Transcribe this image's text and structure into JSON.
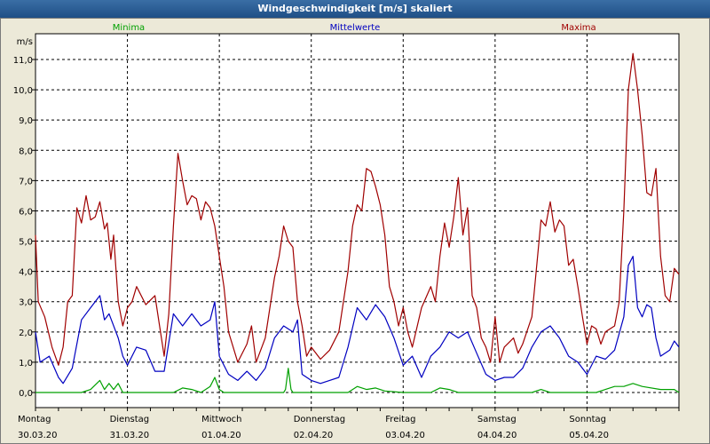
{
  "window": {
    "title": "Windgeschwindigkeit [m/s] skaliert"
  },
  "chart_data": {
    "type": "line",
    "title": "Windgeschwindigkeit [m/s] skaliert",
    "ylabel": "m/s",
    "ylim": [
      0,
      12
    ],
    "yticks": [
      0,
      1,
      2,
      3,
      4,
      5,
      6,
      7,
      8,
      9,
      10,
      11
    ],
    "ytick_labels": [
      "0,0",
      "1,0",
      "2,0",
      "3,0",
      "4,0",
      "5,0",
      "6,0",
      "7,0",
      "8,0",
      "9,0",
      "10,0",
      "11,0"
    ],
    "xlim": [
      0,
      7
    ],
    "days": [
      {
        "name": "Montag",
        "date": "30.03.20"
      },
      {
        "name": "Dienstag",
        "date": "31.03.20"
      },
      {
        "name": "Mittwoch",
        "date": "01.04.20"
      },
      {
        "name": "Donnerstag",
        "date": "02.04.20"
      },
      {
        "name": "Freitag",
        "date": "03.04.20"
      },
      {
        "name": "Samstag",
        "date": "04.04.20"
      },
      {
        "name": "Sonntag",
        "date": "05.04.20"
      }
    ],
    "series": [
      {
        "name": "Minima",
        "color": "#00a000",
        "points": [
          [
            0,
            0
          ],
          [
            0.5,
            0
          ],
          [
            0.6,
            0.1
          ],
          [
            0.7,
            0.4
          ],
          [
            0.75,
            0.1
          ],
          [
            0.8,
            0.3
          ],
          [
            0.85,
            0.1
          ],
          [
            0.9,
            0.3
          ],
          [
            0.95,
            0
          ],
          [
            1.5,
            0
          ],
          [
            1.6,
            0.15
          ],
          [
            1.7,
            0.1
          ],
          [
            1.8,
            0
          ],
          [
            1.9,
            0.2
          ],
          [
            1.95,
            0.5
          ],
          [
            2.0,
            0.1
          ],
          [
            2.05,
            0
          ],
          [
            2.7,
            0
          ],
          [
            2.72,
            0.1
          ],
          [
            2.75,
            0.8
          ],
          [
            2.78,
            0.1
          ],
          [
            2.8,
            0
          ],
          [
            3.4,
            0
          ],
          [
            3.5,
            0.2
          ],
          [
            3.6,
            0.1
          ],
          [
            3.7,
            0.15
          ],
          [
            3.8,
            0.05
          ],
          [
            4.0,
            0
          ],
          [
            4.3,
            0
          ],
          [
            4.4,
            0.15
          ],
          [
            4.5,
            0.1
          ],
          [
            4.6,
            0
          ],
          [
            5.4,
            0
          ],
          [
            5.5,
            0.1
          ],
          [
            5.6,
            0
          ],
          [
            6.1,
            0
          ],
          [
            6.2,
            0.1
          ],
          [
            6.3,
            0.2
          ],
          [
            6.4,
            0.2
          ],
          [
            6.5,
            0.3
          ],
          [
            6.6,
            0.2
          ],
          [
            6.8,
            0.1
          ],
          [
            6.95,
            0.1
          ],
          [
            7.0,
            0
          ]
        ]
      },
      {
        "name": "Mittelwerte",
        "color": "#0000c0",
        "points": [
          [
            0,
            2.0
          ],
          [
            0.05,
            1.0
          ],
          [
            0.15,
            1.2
          ],
          [
            0.25,
            0.5
          ],
          [
            0.3,
            0.3
          ],
          [
            0.4,
            0.8
          ],
          [
            0.5,
            2.4
          ],
          [
            0.6,
            2.8
          ],
          [
            0.7,
            3.2
          ],
          [
            0.75,
            2.4
          ],
          [
            0.8,
            2.6
          ],
          [
            0.9,
            1.8
          ],
          [
            0.95,
            1.2
          ],
          [
            1.0,
            0.9
          ],
          [
            1.1,
            1.5
          ],
          [
            1.2,
            1.4
          ],
          [
            1.3,
            0.7
          ],
          [
            1.4,
            0.7
          ],
          [
            1.5,
            2.6
          ],
          [
            1.6,
            2.2
          ],
          [
            1.7,
            2.6
          ],
          [
            1.8,
            2.2
          ],
          [
            1.9,
            2.4
          ],
          [
            1.95,
            3.0
          ],
          [
            2.0,
            1.2
          ],
          [
            2.1,
            0.6
          ],
          [
            2.2,
            0.4
          ],
          [
            2.3,
            0.7
          ],
          [
            2.4,
            0.4
          ],
          [
            2.5,
            0.8
          ],
          [
            2.6,
            1.8
          ],
          [
            2.7,
            2.2
          ],
          [
            2.8,
            2.0
          ],
          [
            2.85,
            2.4
          ],
          [
            2.9,
            0.6
          ],
          [
            3.0,
            0.4
          ],
          [
            3.1,
            0.3
          ],
          [
            3.2,
            0.4
          ],
          [
            3.3,
            0.5
          ],
          [
            3.4,
            1.5
          ],
          [
            3.5,
            2.8
          ],
          [
            3.6,
            2.4
          ],
          [
            3.7,
            2.9
          ],
          [
            3.8,
            2.5
          ],
          [
            3.9,
            1.8
          ],
          [
            4.0,
            0.9
          ],
          [
            4.1,
            1.2
          ],
          [
            4.2,
            0.5
          ],
          [
            4.3,
            1.2
          ],
          [
            4.4,
            1.5
          ],
          [
            4.5,
            2.0
          ],
          [
            4.6,
            1.8
          ],
          [
            4.7,
            2.0
          ],
          [
            4.8,
            1.3
          ],
          [
            4.9,
            0.6
          ],
          [
            5.0,
            0.4
          ],
          [
            5.1,
            0.5
          ],
          [
            5.2,
            0.5
          ],
          [
            5.3,
            0.8
          ],
          [
            5.4,
            1.5
          ],
          [
            5.5,
            2.0
          ],
          [
            5.6,
            2.2
          ],
          [
            5.7,
            1.8
          ],
          [
            5.8,
            1.2
          ],
          [
            5.9,
            1.0
          ],
          [
            6.0,
            0.6
          ],
          [
            6.1,
            1.2
          ],
          [
            6.2,
            1.1
          ],
          [
            6.3,
            1.4
          ],
          [
            6.4,
            2.5
          ],
          [
            6.45,
            4.2
          ],
          [
            6.5,
            4.5
          ],
          [
            6.55,
            2.8
          ],
          [
            6.6,
            2.5
          ],
          [
            6.65,
            2.9
          ],
          [
            6.7,
            2.8
          ],
          [
            6.75,
            1.8
          ],
          [
            6.8,
            1.2
          ],
          [
            6.9,
            1.4
          ],
          [
            6.95,
            1.7
          ],
          [
            7.0,
            1.5
          ]
        ]
      },
      {
        "name": "Maxima",
        "color": "#a00000",
        "points": [
          [
            0,
            5.2
          ],
          [
            0.03,
            3.0
          ],
          [
            0.1,
            2.5
          ],
          [
            0.18,
            1.5
          ],
          [
            0.25,
            0.9
          ],
          [
            0.3,
            1.5
          ],
          [
            0.35,
            3.0
          ],
          [
            0.4,
            3.2
          ],
          [
            0.45,
            6.1
          ],
          [
            0.5,
            5.6
          ],
          [
            0.55,
            6.5
          ],
          [
            0.6,
            5.7
          ],
          [
            0.65,
            5.8
          ],
          [
            0.7,
            6.3
          ],
          [
            0.75,
            5.4
          ],
          [
            0.78,
            5.6
          ],
          [
            0.82,
            4.4
          ],
          [
            0.85,
            5.2
          ],
          [
            0.9,
            3.0
          ],
          [
            0.95,
            2.2
          ],
          [
            1.0,
            2.8
          ],
          [
            1.05,
            3.0
          ],
          [
            1.1,
            3.5
          ],
          [
            1.2,
            2.9
          ],
          [
            1.3,
            3.2
          ],
          [
            1.4,
            1.2
          ],
          [
            1.45,
            2.6
          ],
          [
            1.5,
            5.5
          ],
          [
            1.55,
            7.9
          ],
          [
            1.6,
            7.0
          ],
          [
            1.65,
            6.2
          ],
          [
            1.7,
            6.5
          ],
          [
            1.75,
            6.4
          ],
          [
            1.8,
            5.7
          ],
          [
            1.85,
            6.3
          ],
          [
            1.9,
            6.1
          ],
          [
            1.95,
            5.5
          ],
          [
            2.0,
            4.5
          ],
          [
            2.05,
            3.5
          ],
          [
            2.1,
            2.0
          ],
          [
            2.2,
            1.0
          ],
          [
            2.3,
            1.6
          ],
          [
            2.35,
            2.2
          ],
          [
            2.4,
            1.0
          ],
          [
            2.5,
            1.8
          ],
          [
            2.6,
            3.8
          ],
          [
            2.65,
            4.5
          ],
          [
            2.7,
            5.5
          ],
          [
            2.75,
            5.0
          ],
          [
            2.8,
            4.8
          ],
          [
            2.85,
            3.0
          ],
          [
            2.9,
            2.2
          ],
          [
            2.95,
            1.2
          ],
          [
            3.0,
            1.5
          ],
          [
            3.1,
            1.1
          ],
          [
            3.2,
            1.4
          ],
          [
            3.3,
            2.0
          ],
          [
            3.4,
            4.0
          ],
          [
            3.45,
            5.5
          ],
          [
            3.5,
            6.2
          ],
          [
            3.55,
            6.0
          ],
          [
            3.6,
            7.4
          ],
          [
            3.65,
            7.3
          ],
          [
            3.7,
            6.8
          ],
          [
            3.75,
            6.2
          ],
          [
            3.8,
            5.2
          ],
          [
            3.85,
            3.5
          ],
          [
            3.9,
            3.0
          ],
          [
            3.95,
            2.2
          ],
          [
            4.0,
            2.8
          ],
          [
            4.05,
            2.0
          ],
          [
            4.1,
            1.5
          ],
          [
            4.2,
            2.8
          ],
          [
            4.3,
            3.5
          ],
          [
            4.35,
            3.0
          ],
          [
            4.4,
            4.5
          ],
          [
            4.45,
            5.6
          ],
          [
            4.5,
            4.8
          ],
          [
            4.55,
            5.8
          ],
          [
            4.6,
            7.1
          ],
          [
            4.65,
            5.2
          ],
          [
            4.7,
            6.1
          ],
          [
            4.75,
            3.2
          ],
          [
            4.8,
            2.8
          ],
          [
            4.85,
            1.8
          ],
          [
            4.9,
            1.5
          ],
          [
            4.95,
            1.0
          ],
          [
            5.0,
            2.5
          ],
          [
            5.05,
            1.0
          ],
          [
            5.1,
            1.5
          ],
          [
            5.2,
            1.8
          ],
          [
            5.25,
            1.3
          ],
          [
            5.3,
            1.6
          ],
          [
            5.4,
            2.5
          ],
          [
            5.5,
            5.7
          ],
          [
            5.55,
            5.5
          ],
          [
            5.6,
            6.3
          ],
          [
            5.65,
            5.3
          ],
          [
            5.7,
            5.7
          ],
          [
            5.75,
            5.5
          ],
          [
            5.8,
            4.2
          ],
          [
            5.85,
            4.4
          ],
          [
            5.9,
            3.5
          ],
          [
            5.95,
            2.5
          ],
          [
            6.0,
            1.6
          ],
          [
            6.05,
            2.2
          ],
          [
            6.1,
            2.1
          ],
          [
            6.15,
            1.6
          ],
          [
            6.2,
            2.0
          ],
          [
            6.3,
            2.2
          ],
          [
            6.35,
            3.0
          ],
          [
            6.4,
            6.0
          ],
          [
            6.45,
            10.0
          ],
          [
            6.5,
            11.2
          ],
          [
            6.55,
            10.0
          ],
          [
            6.6,
            8.5
          ],
          [
            6.65,
            6.6
          ],
          [
            6.7,
            6.5
          ],
          [
            6.75,
            7.4
          ],
          [
            6.8,
            4.5
          ],
          [
            6.85,
            3.2
          ],
          [
            6.9,
            3.0
          ],
          [
            6.95,
            4.1
          ],
          [
            7.0,
            3.9
          ]
        ]
      }
    ]
  }
}
